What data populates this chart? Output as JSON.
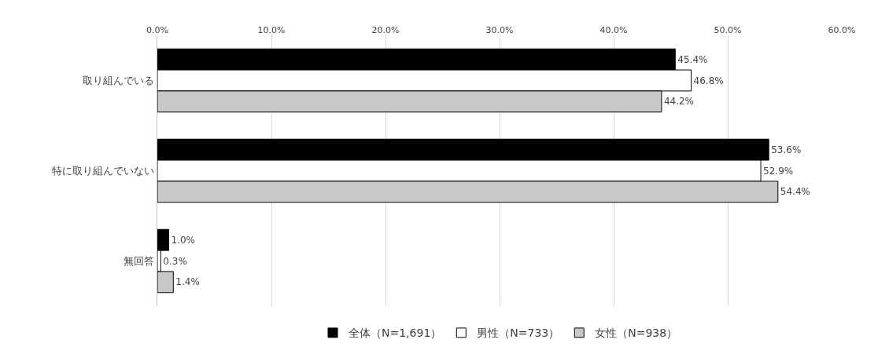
{
  "chart_data": {
    "type": "bar",
    "orientation": "horizontal",
    "categories": [
      "取り組んでいる",
      "特に取り組んでいない",
      "無回答"
    ],
    "series": [
      {
        "name": "全体（N=1,691）",
        "color": "#000000",
        "values": [
          45.4,
          53.6,
          1.0
        ],
        "value_labels": [
          "45.4%",
          "53.6%",
          "1.0%"
        ]
      },
      {
        "name": "男性（N=733）",
        "color": "#ffffff",
        "values": [
          46.8,
          52.9,
          0.3
        ],
        "value_labels": [
          "46.8%",
          "52.9%",
          "0.3%"
        ]
      },
      {
        "name": "女性（N=938）",
        "color": "#c8c8c8",
        "values": [
          44.2,
          54.4,
          1.4
        ],
        "value_labels": [
          "44.2%",
          "54.4%",
          "1.4%"
        ]
      }
    ],
    "xlim": [
      0,
      60
    ],
    "xticks": [
      {
        "value": 0,
        "label": "0.0%"
      },
      {
        "value": 10,
        "label": "10.0%"
      },
      {
        "value": 20,
        "label": "20.0%"
      },
      {
        "value": 30,
        "label": "30.0%"
      },
      {
        "value": 40,
        "label": "40.0%"
      },
      {
        "value": 50,
        "label": "50.0%"
      },
      {
        "value": 60,
        "label": "60.0%"
      }
    ],
    "grid": "x",
    "legend": "bottom"
  }
}
